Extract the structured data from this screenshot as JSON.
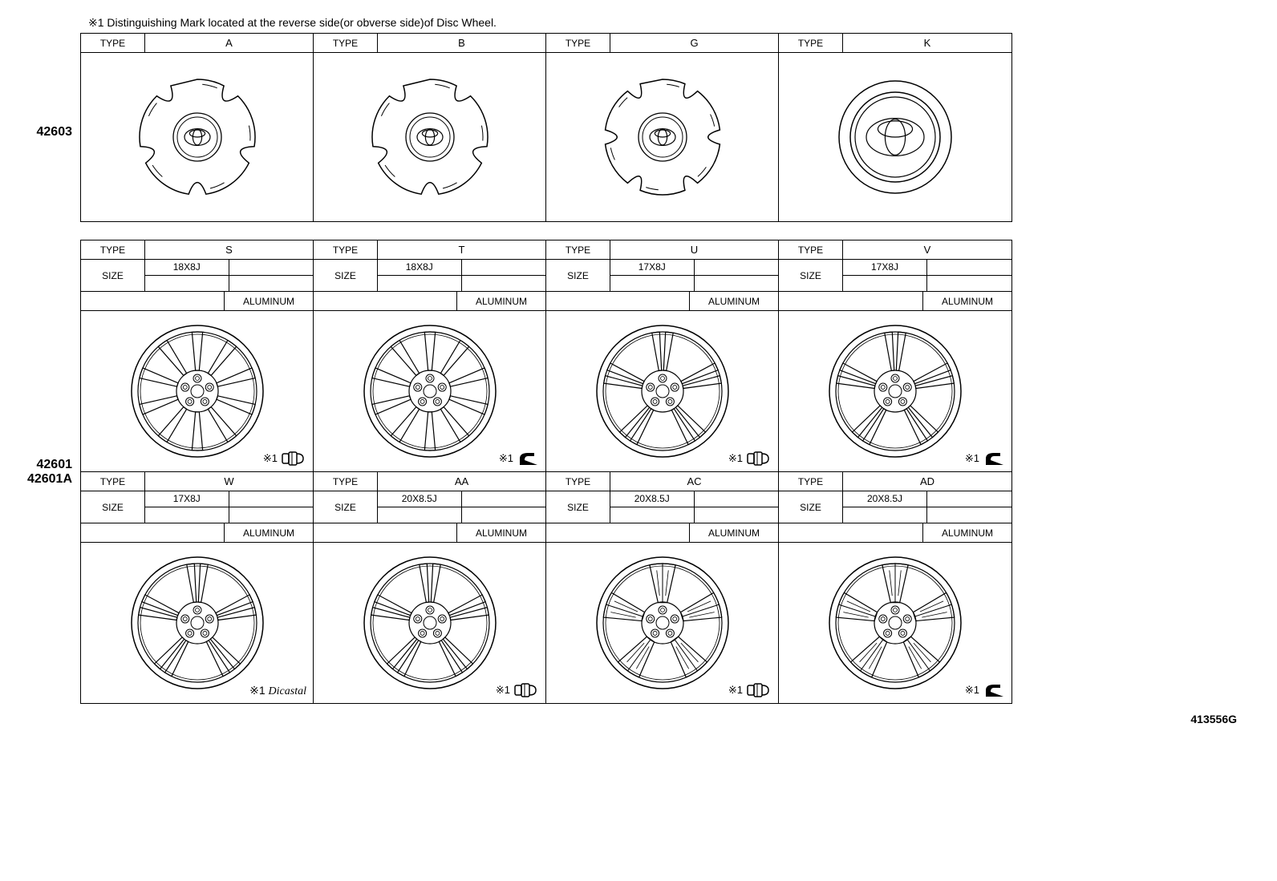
{
  "note_text": "※1 Distinguishing Mark located at the reverse side(or obverse side)of Disc Wheel.",
  "diagram_id": "413556G",
  "part_numbers": {
    "caps": "42603",
    "wheels_1": "42601",
    "wheels_2": "42601A"
  },
  "labels": {
    "type": "TYPE",
    "size": "SIZE",
    "aluminum": "ALUMINUM",
    "mark_prefix": "※1",
    "dicastal": "Dicastal"
  },
  "caps": [
    {
      "type": "A",
      "spokes": 5,
      "style": "star"
    },
    {
      "type": "B",
      "spokes": 5,
      "style": "star"
    },
    {
      "type": "G",
      "spokes": 6,
      "style": "star"
    },
    {
      "type": "K",
      "spokes": 0,
      "style": "round"
    }
  ],
  "wheels": [
    {
      "type": "S",
      "size": "18X8J",
      "material": "ALUMINUM",
      "spokes": 10,
      "design": "multi",
      "mark": "lug"
    },
    {
      "type": "T",
      "size": "18X8J",
      "material": "ALUMINUM",
      "spokes": 10,
      "design": "multi",
      "mark": "foot"
    },
    {
      "type": "U",
      "size": "17X8J",
      "material": "ALUMINUM",
      "spokes": 5,
      "design": "split",
      "mark": "lug"
    },
    {
      "type": "V",
      "size": "17X8J",
      "material": "ALUMINUM",
      "spokes": 5,
      "design": "split",
      "mark": "foot"
    },
    {
      "type": "W",
      "size": "17X8J",
      "material": "ALUMINUM",
      "spokes": 5,
      "design": "split",
      "mark": "dicastal"
    },
    {
      "type": "AA",
      "size": "20X8.5J",
      "material": "ALUMINUM",
      "spokes": 5,
      "design": "twin",
      "mark": "lug"
    },
    {
      "type": "AC",
      "size": "20X8.5J",
      "material": "ALUMINUM",
      "spokes": 5,
      "design": "complex",
      "mark": "lug"
    },
    {
      "type": "AD",
      "size": "20X8.5J",
      "material": "ALUMINUM",
      "spokes": 5,
      "design": "complex",
      "mark": "foot"
    }
  ],
  "colors": {
    "bg": "#ffffff",
    "line": "#000000"
  }
}
